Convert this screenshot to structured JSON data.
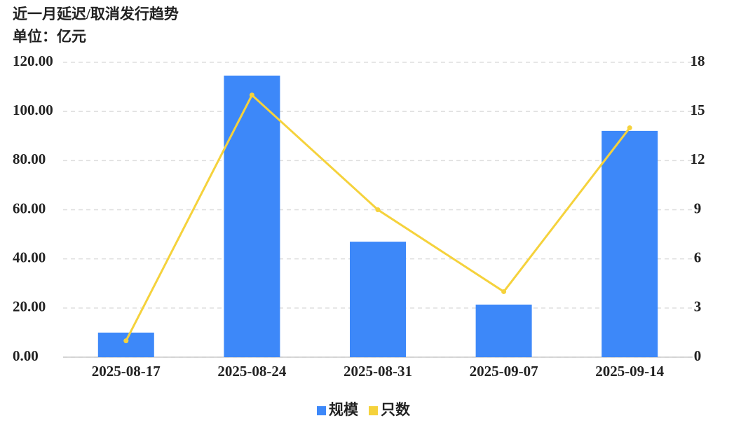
{
  "chart_data": {
    "type": "bar-line",
    "title": "近一月延迟/取消发行趋势",
    "subtitle": "单位：亿元",
    "categories": [
      "2025-08-17",
      "2025-08-24",
      "2025-08-31",
      "2025-09-07",
      "2025-09-14"
    ],
    "series": [
      {
        "name": "规模",
        "type": "bar",
        "color": "#3d88f9",
        "values": [
          10,
          114.6,
          47,
          21.4,
          92.1
        ]
      },
      {
        "name": "只数",
        "type": "line",
        "axis": "y2",
        "color": "#f5d23c",
        "values": [
          1,
          16,
          9,
          4,
          14
        ]
      }
    ],
    "ylim": [
      0,
      120
    ],
    "yticks": [
      {
        "value": 0,
        "label": "0.00"
      },
      {
        "value": 20,
        "label": "20.00"
      },
      {
        "value": 40,
        "label": "40.00"
      },
      {
        "value": 60,
        "label": "60.00"
      },
      {
        "value": 80,
        "label": "80.00"
      },
      {
        "value": 100,
        "label": "100.00"
      },
      {
        "value": 120,
        "label": "120.00"
      }
    ],
    "y2lim": [
      0,
      18
    ],
    "y2ticks": [
      0,
      3,
      6,
      9,
      12,
      15,
      18
    ],
    "grid": true,
    "legend": "bottom"
  }
}
